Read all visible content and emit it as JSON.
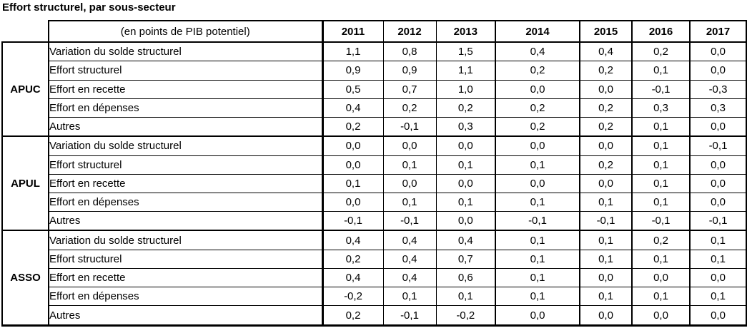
{
  "title": "Effort structurel, par sous-secteur",
  "colors": {
    "background": "#ffffff",
    "border": "#000000",
    "text": "#000000"
  },
  "table": {
    "unit_header": "(en points de PIB potentiel)",
    "years": [
      "2011",
      "2012",
      "2013",
      "2014",
      "2015",
      "2016",
      "2017"
    ],
    "sections": [
      {
        "name": "APUC",
        "rows": [
          {
            "label": "Variation du solde structurel",
            "indent": 0,
            "values": [
              "1,1",
              "0,8",
              "1,5",
              "0,4",
              "0,4",
              "0,2",
              "0,0"
            ]
          },
          {
            "label": "Effort structurel",
            "indent": 1,
            "values": [
              "0,9",
              "0,9",
              "1,1",
              "0,2",
              "0,2",
              "0,1",
              "0,0"
            ]
          },
          {
            "label": "Effort en recette",
            "indent": 2,
            "values": [
              "0,5",
              "0,7",
              "1,0",
              "0,0",
              "0,0",
              "-0,1",
              "-0,3"
            ]
          },
          {
            "label": "Effort en dépenses",
            "indent": 2,
            "values": [
              "0,4",
              "0,2",
              "0,2",
              "0,2",
              "0,2",
              "0,3",
              "0,3"
            ]
          },
          {
            "label": "Autres",
            "indent": 3,
            "values": [
              "0,2",
              "-0,1",
              "0,3",
              "0,2",
              "0,2",
              "0,1",
              "0,0"
            ]
          }
        ]
      },
      {
        "name": "APUL",
        "rows": [
          {
            "label": "Variation du solde structurel",
            "indent": 0,
            "values": [
              "0,0",
              "0,0",
              "0,0",
              "0,0",
              "0,0",
              "0,1",
              "-0,1"
            ]
          },
          {
            "label": "Effort structurel",
            "indent": 1,
            "values": [
              "0,0",
              "0,1",
              "0,1",
              "0,1",
              "0,2",
              "0,1",
              "0,0"
            ]
          },
          {
            "label": "Effort en recette",
            "indent": 2,
            "values": [
              "0,1",
              "0,0",
              "0,0",
              "0,0",
              "0,0",
              "0,1",
              "0,0"
            ]
          },
          {
            "label": "Effort en dépenses",
            "indent": 2,
            "values": [
              "0,0",
              "0,1",
              "0,1",
              "0,1",
              "0,1",
              "0,1",
              "0,0"
            ]
          },
          {
            "label": "Autres",
            "indent": 3,
            "values": [
              "-0,1",
              "-0,1",
              "0,0",
              "-0,1",
              "-0,1",
              "-0,1",
              "-0,1"
            ]
          }
        ]
      },
      {
        "name": "ASSO",
        "rows": [
          {
            "label": "Variation du solde structurel",
            "indent": 0,
            "values": [
              "0,4",
              "0,4",
              "0,4",
              "0,1",
              "0,1",
              "0,2",
              "0,1"
            ]
          },
          {
            "label": "Effort structurel",
            "indent": 1,
            "values": [
              "0,2",
              "0,4",
              "0,7",
              "0,1",
              "0,1",
              "0,1",
              "0,1"
            ]
          },
          {
            "label": "Effort en recette",
            "indent": 2,
            "values": [
              "0,4",
              "0,4",
              "0,6",
              "0,1",
              "0,0",
              "0,0",
              "0,0"
            ]
          },
          {
            "label": "Effort en dépenses",
            "indent": 2,
            "values": [
              "-0,2",
              "0,1",
              "0,1",
              "0,1",
              "0,1",
              "0,1",
              "0,1"
            ]
          },
          {
            "label": "Autres",
            "indent": 3,
            "values": [
              "0,2",
              "-0,1",
              "-0,2",
              "0,0",
              "0,0",
              "0,0",
              "0,0"
            ]
          }
        ]
      }
    ]
  }
}
